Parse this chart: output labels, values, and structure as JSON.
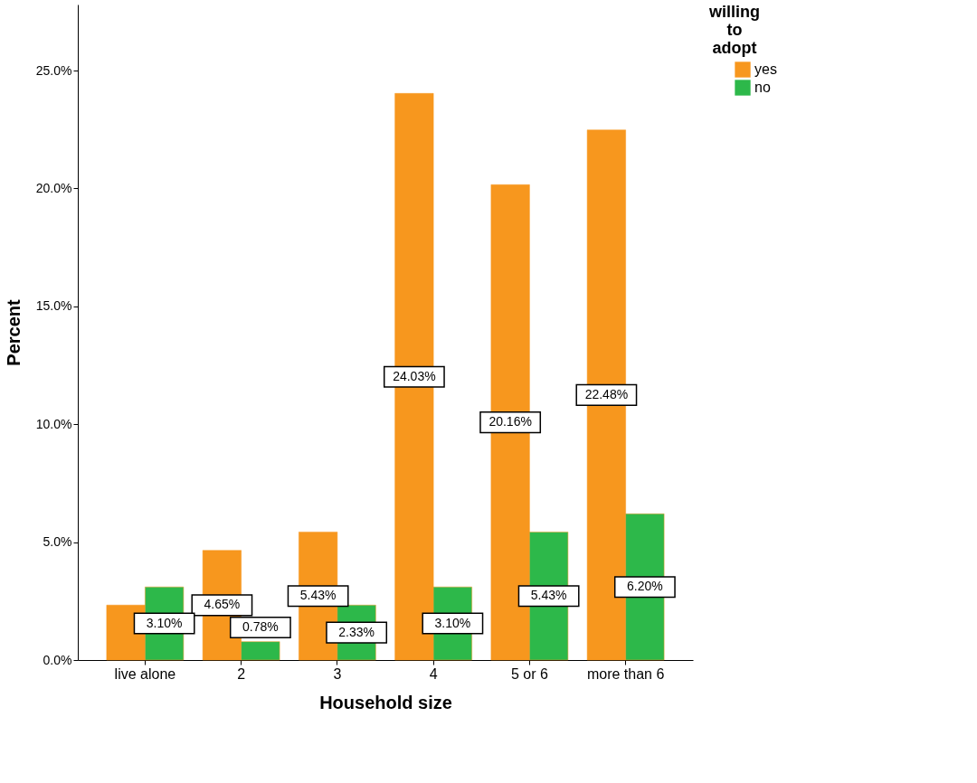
{
  "chart_data": {
    "type": "bar",
    "xlabel": "Household size",
    "ylabel": "Percent",
    "legend_title": "willing to adopt",
    "categories": [
      "live alone",
      "2",
      "3",
      "4",
      "5 or 6",
      "more than 6"
    ],
    "series": [
      {
        "name": "yes",
        "color": "#f7971e",
        "values": [
          2.33,
          4.65,
          5.43,
          24.03,
          20.16,
          22.48
        ],
        "value_labels": [
          null,
          "4.65%",
          "5.43%",
          "24.03%",
          "20.16%",
          "22.48%"
        ]
      },
      {
        "name": "no",
        "color": "#2db84a",
        "values": [
          3.1,
          0.78,
          2.33,
          3.1,
          5.43,
          6.2
        ],
        "value_labels": [
          "3.10%",
          "0.78%",
          "2.33%",
          "3.10%",
          "5.43%",
          "6.20%"
        ]
      }
    ],
    "ylim": [
      0,
      27.8
    ],
    "yticks": [
      {
        "value": 0,
        "label": "0.0%"
      },
      {
        "value": 5,
        "label": "5.0%"
      },
      {
        "value": 10,
        "label": "10.0%"
      },
      {
        "value": 15,
        "label": "15.0%"
      },
      {
        "value": 20,
        "label": "20.0%"
      },
      {
        "value": 25,
        "label": "25.0%"
      }
    ],
    "grid": false,
    "legend": "top right"
  }
}
